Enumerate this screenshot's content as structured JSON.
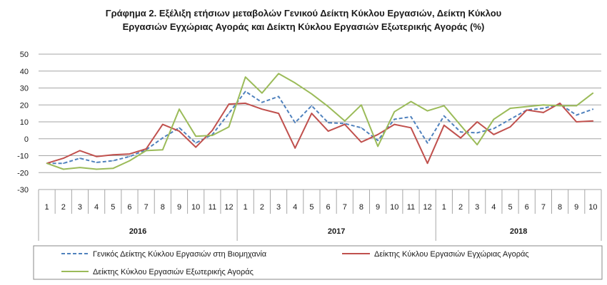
{
  "chart_data": {
    "type": "line",
    "title_line1": "Γράφημα 2. Εξέλιξη ετήσιων μεταβολών Γενικού Δείκτη Κύκλου Εργασιών,  Δείκτη Κύκλου",
    "title_line2": "Εργασιών Εγχώριας Αγοράς και Δείκτη Κύκλου Εργασιών Εξωτερικής Αγοράς  (%)",
    "ylim": [
      -30,
      50
    ],
    "yticks": [
      50,
      40,
      30,
      20,
      10,
      0,
      -10,
      -20,
      -30
    ],
    "x_months": [
      "1",
      "2",
      "3",
      "4",
      "5",
      "6",
      "7",
      "8",
      "9",
      "10",
      "11",
      "12",
      "1",
      "2",
      "3",
      "4",
      "5",
      "6",
      "7",
      "8",
      "9",
      "10",
      "11",
      "12",
      "1",
      "2",
      "3",
      "4",
      "5",
      "6",
      "7",
      "8",
      "9",
      "10"
    ],
    "years": [
      {
        "label": "2016",
        "start": 0,
        "count": 12
      },
      {
        "label": "2017",
        "start": 12,
        "count": 12
      },
      {
        "label": "2018",
        "start": 24,
        "count": 10
      }
    ],
    "grid": "horizontal",
    "legend_position": "bottom",
    "series": [
      {
        "name": "Γενικός Δείκτης Κύκλου Εργασιών στη Βιομηχανία",
        "color": "#4f81bd",
        "style": "dashed",
        "values": [
          -14.5,
          -14.5,
          -11.5,
          -14,
          -13,
          -10.5,
          -6.5,
          0.5,
          6.5,
          -2.5,
          2.5,
          15,
          28,
          21.5,
          25,
          9.5,
          19.5,
          9.5,
          9,
          6.5,
          -1,
          11.5,
          13,
          -2.5,
          13.5,
          4,
          3.5,
          6,
          11.5,
          17,
          18,
          20.5,
          14,
          17.5
        ]
      },
      {
        "name": "Δείκτης Κύκλου Εργασιών Εγχώριας Αγοράς",
        "color": "#c0504d",
        "style": "solid",
        "values": [
          -14.5,
          -11.5,
          -7,
          -10.5,
          -9.5,
          -9,
          -6,
          8.5,
          4.5,
          -5,
          5,
          20.5,
          21,
          17.5,
          15,
          -5.5,
          15,
          4.5,
          8.5,
          -2,
          2.5,
          8.5,
          6.5,
          -14.5,
          8,
          0.5,
          10,
          2.5,
          7,
          17,
          15.5,
          21,
          10,
          10.5
        ]
      },
      {
        "name": "Δείκτης Κύκλου Εργασιών Εξωτερικής Αγοράς",
        "color": "#9bbb59",
        "style": "solid",
        "values": [
          -14.5,
          -18,
          -17,
          -18,
          -17.5,
          -13,
          -7,
          -6.5,
          17.5,
          1.5,
          2,
          7,
          36.5,
          27,
          38.5,
          33,
          26.5,
          19,
          10.5,
          20,
          -4.5,
          16,
          22,
          16.5,
          19.5,
          8,
          -3.5,
          11.5,
          18,
          19,
          20,
          19.5,
          19.5,
          27
        ]
      }
    ]
  }
}
